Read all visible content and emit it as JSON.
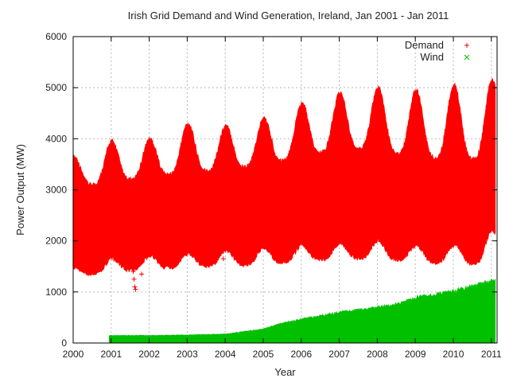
{
  "chart_data": {
    "type": "scatter",
    "title": "Irish Grid Demand and Wind Generation, Ireland, Jan 2001 - Jan 2011",
    "xlabel": "Year",
    "ylabel": "Power Output (MW)",
    "xlim": [
      2000,
      2011.15
    ],
    "ylim": [
      0,
      6000
    ],
    "xticks": [
      "2000",
      "2001",
      "2002",
      "2003",
      "2004",
      "2005",
      "2006",
      "2007",
      "2008",
      "2009",
      "2010",
      "2011"
    ],
    "yticks": [
      "0",
      "1000",
      "2000",
      "3000",
      "4000",
      "5000",
      "6000"
    ],
    "grid": true,
    "legend_position": "top-right",
    "series": [
      {
        "name": "Demand",
        "marker": "+",
        "color": "#ff0000",
        "yearly_envelope": [
          {
            "year": 2000,
            "summer_min": 1350,
            "summer_max": 3000,
            "winter_min": 1500,
            "winter_peak": 3600
          },
          {
            "year": 2001,
            "summer_min": 1450,
            "summer_max": 3100,
            "winter_min": 1700,
            "winter_peak": 3900
          },
          {
            "year": 2002,
            "summer_min": 1500,
            "summer_max": 3200,
            "winter_min": 1750,
            "winter_peak": 3950
          },
          {
            "year": 2003,
            "summer_min": 1550,
            "summer_max": 3300,
            "winter_min": 1800,
            "winter_peak": 4250
          },
          {
            "year": 2004,
            "summer_min": 1550,
            "summer_max": 3350,
            "winter_min": 1850,
            "winter_peak": 4200
          },
          {
            "year": 2005,
            "summer_min": 1600,
            "summer_max": 3450,
            "winter_min": 1900,
            "winter_peak": 4350
          },
          {
            "year": 2006,
            "summer_min": 1650,
            "summer_max": 3600,
            "winter_min": 1950,
            "winter_peak": 4650
          },
          {
            "year": 2007,
            "summer_min": 1700,
            "summer_max": 3750,
            "winter_min": 2000,
            "winter_peak": 4850
          },
          {
            "year": 2008,
            "summer_min": 1700,
            "summer_max": 3750,
            "winter_min": 2050,
            "winter_peak": 4950
          },
          {
            "year": 2009,
            "summer_min": 1650,
            "summer_max": 3600,
            "winter_min": 1950,
            "winter_peak": 4900
          },
          {
            "year": 2010,
            "summer_min": 1600,
            "summer_max": 3550,
            "winter_min": 1950,
            "winter_peak": 5000
          },
          {
            "year": 2011,
            "summer_min": 1600,
            "summer_max": 3550,
            "winter_min": 2250,
            "winter_peak": 5100
          }
        ],
        "outliers": [
          {
            "x": 2001.55,
            "y": 1500
          },
          {
            "x": 2001.58,
            "y": 1400
          },
          {
            "x": 2001.6,
            "y": 1250
          },
          {
            "x": 2001.62,
            "y": 1100
          },
          {
            "x": 2001.64,
            "y": 1050
          },
          {
            "x": 2001.8,
            "y": 1350
          },
          {
            "x": 2003.95,
            "y": 1650
          },
          {
            "x": 2008.5,
            "y": 1700
          }
        ]
      },
      {
        "name": "Wind",
        "marker": "x",
        "color": "#00c000",
        "start_year": 2000.95,
        "max_envelope": [
          {
            "x": 2000.95,
            "y": 150
          },
          {
            "x": 2002.0,
            "y": 150
          },
          {
            "x": 2003.0,
            "y": 160
          },
          {
            "x": 2004.0,
            "y": 180
          },
          {
            "x": 2005.0,
            "y": 280
          },
          {
            "x": 2005.5,
            "y": 400
          },
          {
            "x": 2006.0,
            "y": 480
          },
          {
            "x": 2007.0,
            "y": 620
          },
          {
            "x": 2008.0,
            "y": 720
          },
          {
            "x": 2008.6,
            "y": 800
          },
          {
            "x": 2009.0,
            "y": 920
          },
          {
            "x": 2010.0,
            "y": 1050
          },
          {
            "x": 2010.5,
            "y": 1150
          },
          {
            "x": 2011.0,
            "y": 1250
          }
        ]
      }
    ]
  }
}
